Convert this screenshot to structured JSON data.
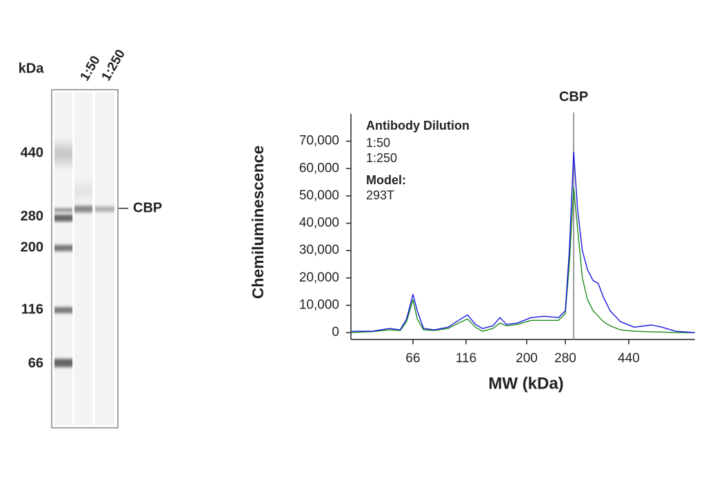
{
  "gel": {
    "units_label": "kDa",
    "lanes": [
      "1:50",
      "1:250"
    ],
    "markers": [
      440,
      280,
      200,
      116,
      66
    ],
    "band_label": "CBP"
  },
  "chart_data": {
    "type": "line",
    "y_label": "Chemiluminescence",
    "x_label": "MW (kDa)",
    "legend_title": "Antibody Dilution",
    "model_label": "Model:",
    "model": "293T",
    "annotation": {
      "text": "CBP",
      "x": 301
    },
    "x": [
      8,
      28,
      44,
      54,
      60,
      66,
      70,
      76,
      86,
      99,
      109,
      118,
      129,
      139,
      153,
      163,
      172,
      187,
      209,
      237,
      266,
      280,
      290,
      301,
      311,
      323,
      336,
      350,
      363,
      376,
      393,
      419,
      454,
      497,
      524,
      558,
      607
    ],
    "series": [
      {
        "name": "1:250",
        "color": "#1a8a1a",
        "values": [
          0,
          400,
          1000,
          800,
          4000,
          12000,
          5000,
          1000,
          800,
          1500,
          3500,
          5000,
          2000,
          500,
          1500,
          3500,
          2500,
          3000,
          4500,
          4500,
          4500,
          7000,
          25000,
          53000,
          38000,
          20000,
          12000,
          8000,
          6000,
          4000,
          2500,
          1000,
          500,
          300,
          200,
          0,
          0
        ]
      },
      {
        "name": "1:50",
        "color": "#1414e0",
        "values": [
          500,
          500,
          1500,
          1000,
          5000,
          14000,
          8000,
          1500,
          1000,
          2000,
          4500,
          6500,
          3000,
          1500,
          2500,
          5500,
          3000,
          3500,
          5500,
          6000,
          5500,
          8000,
          30000,
          66000,
          45000,
          30000,
          23000,
          19000,
          18000,
          13000,
          8000,
          4000,
          2000,
          2800,
          2000,
          500,
          0
        ]
      }
    ],
    "xlim": [
      8,
      607
    ],
    "xticks": [
      66,
      116,
      200,
      280,
      440
    ],
    "x_scale": "piecewise",
    "ylim": [
      -2500,
      80000
    ],
    "yticks": [
      0,
      {
        "value": 10000,
        "label": "10,000"
      },
      {
        "value": 20000,
        "label": "20,000"
      },
      {
        "value": 30000,
        "label": "30,000"
      },
      {
        "value": 40000,
        "label": "40,000"
      },
      {
        "value": 50000,
        "label": "50,000"
      },
      {
        "value": 60000,
        "label": "60,000"
      },
      {
        "value": 70000,
        "label": "70,000"
      }
    ]
  }
}
